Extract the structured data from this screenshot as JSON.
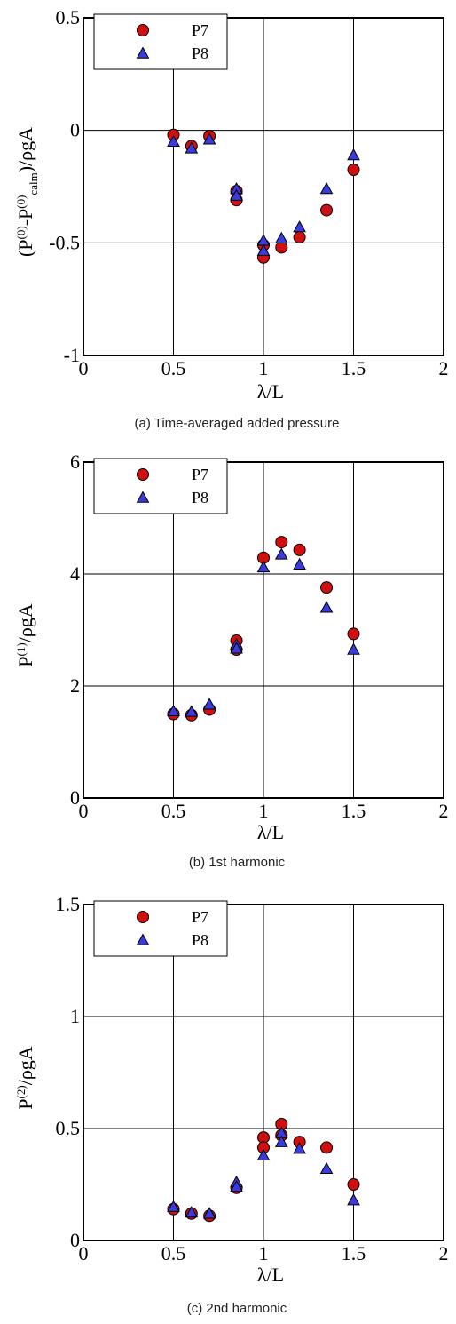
{
  "chart_data": [
    {
      "type": "scatter",
      "caption": "(a) Time-averaged added pressure",
      "xlabel": "λ/L",
      "ylabel": {
        "base": "(P",
        "sup1": "(0)",
        "mid": "-P",
        "sup2": "(0)",
        "sub": "calm",
        "tail": ")/ρgA"
      },
      "xlim": [
        0,
        2
      ],
      "ylim": [
        -1,
        0.5
      ],
      "xticks": [
        "0",
        "0.5",
        "1",
        "1.5",
        "2"
      ],
      "yticks": [
        "-1",
        "-0.5",
        "0",
        "0.5"
      ],
      "xtick_values": [
        0,
        0.5,
        1,
        1.5,
        2
      ],
      "ytick_values": [
        -1,
        -0.5,
        0,
        0.5
      ],
      "grid": true,
      "legend_position": "top-left",
      "series": [
        {
          "name": "P7",
          "marker": "circle",
          "color": "#d01010",
          "x": [
            0.5,
            0.6,
            0.7,
            0.85,
            0.85,
            1.0,
            1.0,
            1.1,
            1.2,
            1.35,
            1.5
          ],
          "y": [
            -0.02,
            -0.07,
            -0.025,
            -0.27,
            -0.31,
            -0.51,
            -0.565,
            -0.52,
            -0.475,
            -0.355,
            -0.175
          ]
        },
        {
          "name": "P8",
          "marker": "triangle",
          "color": "#3a3ae0",
          "x": [
            0.5,
            0.6,
            0.7,
            0.85,
            0.85,
            1.0,
            1.0,
            1.1,
            1.2,
            1.35,
            1.5
          ],
          "y": [
            -0.05,
            -0.08,
            -0.04,
            -0.26,
            -0.29,
            -0.49,
            -0.535,
            -0.48,
            -0.43,
            -0.26,
            -0.11
          ]
        }
      ]
    },
    {
      "type": "scatter",
      "caption": "(b) 1st harmonic",
      "xlabel": "λ/L",
      "ylabel": {
        "base": "P",
        "sup1": "(1)",
        "tail": "/ρgA"
      },
      "xlim": [
        0,
        2
      ],
      "ylim": [
        0,
        6
      ],
      "xticks": [
        "0",
        "0.5",
        "1",
        "1.5",
        "2"
      ],
      "yticks": [
        "0",
        "2",
        "4",
        "6"
      ],
      "xtick_values": [
        0,
        0.5,
        1,
        1.5,
        2
      ],
      "ytick_values": [
        0,
        2,
        4,
        6
      ],
      "grid": true,
      "legend_position": "top-left",
      "series": [
        {
          "name": "P7",
          "marker": "circle",
          "color": "#d01010",
          "x": [
            0.5,
            0.6,
            0.7,
            0.85,
            0.85,
            1.0,
            1.1,
            1.2,
            1.35,
            1.5
          ],
          "y": [
            1.5,
            1.48,
            1.58,
            2.81,
            2.65,
            4.29,
            4.57,
            4.43,
            3.76,
            2.93
          ]
        },
        {
          "name": "P8",
          "marker": "triangle",
          "color": "#3a3ae0",
          "x": [
            0.5,
            0.6,
            0.7,
            0.85,
            0.85,
            1.0,
            1.1,
            1.2,
            1.35,
            1.5
          ],
          "y": [
            1.55,
            1.54,
            1.67,
            2.74,
            2.67,
            4.12,
            4.35,
            4.17,
            3.4,
            2.65
          ]
        }
      ]
    },
    {
      "type": "scatter",
      "caption": "(c) 2nd harmonic",
      "xlabel": "λ/L",
      "ylabel": {
        "base": "P",
        "sup1": "(2)",
        "tail": "/ρgA"
      },
      "xlim": [
        0,
        2
      ],
      "ylim": [
        0,
        1.5
      ],
      "xticks": [
        "0",
        "0.5",
        "1",
        "1.5",
        "2"
      ],
      "yticks": [
        "0",
        "0.5",
        "1",
        "1.5"
      ],
      "xtick_values": [
        0,
        0.5,
        1,
        1.5,
        2
      ],
      "ytick_values": [
        0,
        0.5,
        1,
        1.5
      ],
      "grid": true,
      "legend_position": "top-left",
      "series": [
        {
          "name": "P7",
          "marker": "circle",
          "color": "#d01010",
          "x": [
            0.5,
            0.6,
            0.7,
            0.85,
            1.0,
            1.0,
            1.1,
            1.1,
            1.2,
            1.35,
            1.5
          ],
          "y": [
            0.14,
            0.12,
            0.11,
            0.235,
            0.46,
            0.415,
            0.52,
            0.47,
            0.44,
            0.415,
            0.25
          ]
        },
        {
          "name": "P8",
          "marker": "triangle",
          "color": "#3a3ae0",
          "x": [
            0.5,
            0.6,
            0.7,
            0.85,
            0.85,
            1.0,
            1.1,
            1.1,
            1.2,
            1.35,
            1.5
          ],
          "y": [
            0.15,
            0.125,
            0.12,
            0.26,
            0.24,
            0.38,
            0.48,
            0.44,
            0.41,
            0.32,
            0.18
          ]
        }
      ]
    }
  ]
}
